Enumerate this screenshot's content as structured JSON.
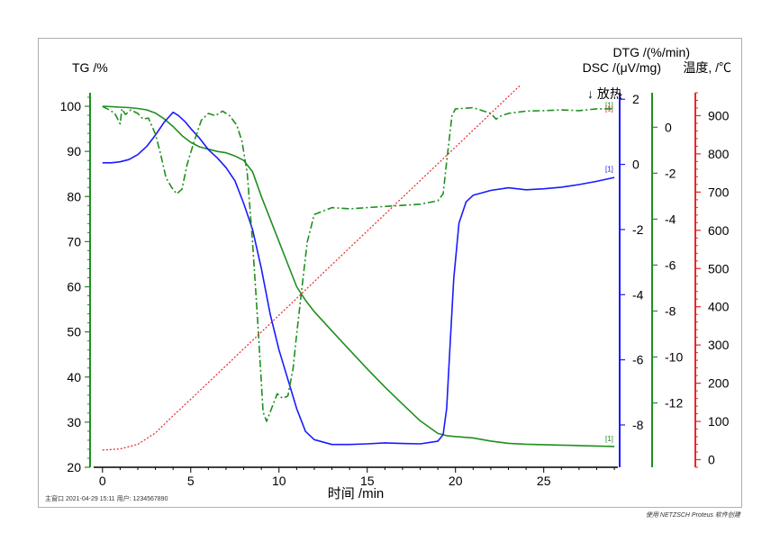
{
  "chart_data": {
    "type": "line",
    "title": "",
    "xlabel": "时间 /min",
    "xlim": [
      -0.5,
      29.2
    ],
    "x_ticks": [
      0,
      5,
      10,
      15,
      20,
      25
    ],
    "axes": {
      "tg": {
        "label": "TG /%",
        "lim": [
          20,
          103
        ],
        "ticks": [
          20,
          30,
          40,
          50,
          60,
          70,
          80,
          90,
          100
        ],
        "color": "#1f8f1f"
      },
      "dsc": {
        "label": "DSC /(μV/mg)",
        "lim": [
          -9.3,
          2.2
        ],
        "ticks": [
          -8,
          -6,
          -4,
          -2,
          0,
          2
        ],
        "color": "#1a1aff",
        "annotation": "↓ 放热"
      },
      "dtg": {
        "label": "DTG /(%/min)",
        "lim": [
          -14.8,
          1.5
        ],
        "ticks": [
          -12,
          -10,
          -8,
          -6,
          -4,
          -2,
          0
        ],
        "color": "#1f8f1f"
      },
      "temp": {
        "label": "温度, /℃",
        "lim": [
          -20,
          960
        ],
        "ticks": [
          0,
          100,
          200,
          300,
          400,
          500,
          600,
          700,
          800,
          900
        ],
        "color": "#e8272b"
      }
    },
    "series": [
      {
        "name": "TG",
        "axis": "tg",
        "color": "#1f8f1f",
        "style": "solid",
        "x": [
          0,
          1,
          1.5,
          2,
          2.5,
          3,
          3.5,
          4,
          4.5,
          5,
          5.5,
          6,
          6.5,
          7,
          7.5,
          8,
          8.5,
          9,
          9.5,
          10,
          10.5,
          11,
          11.5,
          12,
          13,
          14,
          15,
          16,
          17,
          18,
          19,
          19.5,
          20,
          21,
          22,
          23,
          24,
          25,
          26,
          27,
          28,
          29
        ],
        "y": [
          100,
          99.8,
          99.7,
          99.5,
          99.2,
          98.5,
          97.2,
          95.5,
          93.5,
          92,
          91,
          90.5,
          90,
          89.7,
          89,
          88,
          85.5,
          80,
          75,
          70,
          65,
          60,
          57,
          54.5,
          50.2,
          46,
          41.8,
          37.8,
          34,
          30.3,
          27.5,
          27,
          26.8,
          26.5,
          25.8,
          25.3,
          25.1,
          25,
          24.9,
          24.8,
          24.7,
          24.6
        ]
      },
      {
        "name": "DSC",
        "axis": "dsc",
        "color": "#1a1aff",
        "style": "solid",
        "x": [
          0,
          0.5,
          1,
          1.5,
          2,
          2.5,
          3,
          3.5,
          4,
          4.3,
          4.7,
          5,
          5.5,
          6,
          6.5,
          7,
          7.5,
          8,
          8.5,
          9,
          9.5,
          10,
          10.5,
          11,
          11.5,
          12,
          13,
          14,
          15,
          16,
          17,
          18,
          19,
          19.3,
          19.5,
          19.7,
          19.9,
          20.2,
          20.6,
          21,
          22,
          23,
          24,
          25,
          26,
          27,
          28,
          29
        ],
        "y": [
          0.05,
          0.05,
          0.08,
          0.15,
          0.3,
          0.55,
          0.9,
          1.3,
          1.6,
          1.5,
          1.3,
          1.1,
          0.8,
          0.45,
          0.2,
          -0.1,
          -0.5,
          -1.2,
          -2,
          -3.2,
          -4.6,
          -5.7,
          -6.6,
          -7.5,
          -8.2,
          -8.45,
          -8.6,
          -8.6,
          -8.58,
          -8.55,
          -8.57,
          -8.58,
          -8.5,
          -8.3,
          -7.5,
          -5.5,
          -3.5,
          -1.8,
          -1.15,
          -0.95,
          -0.8,
          -0.72,
          -0.78,
          -0.75,
          -0.7,
          -0.62,
          -0.52,
          -0.4
        ]
      },
      {
        "name": "DTG",
        "axis": "dtg",
        "color": "#1f8f1f",
        "style": "dashdot",
        "x": [
          0,
          0.4,
          0.7,
          1,
          1.1,
          1.3,
          1.6,
          2,
          2.3,
          2.6,
          3,
          3.3,
          3.6,
          3.9,
          4.2,
          4.5,
          4.8,
          5.2,
          5.6,
          6,
          6.4,
          6.8,
          7.2,
          7.6,
          7.9,
          8.2,
          8.5,
          8.8,
          9.1,
          9.3,
          9.6,
          9.9,
          10.2,
          10.5,
          10.8,
          11,
          11.3,
          11.6,
          12,
          13,
          14,
          15,
          16,
          17,
          18,
          19,
          19.3,
          19.5,
          19.8,
          20,
          21,
          22,
          22.3,
          22.6,
          23,
          24,
          25,
          26,
          27,
          28,
          29
        ],
        "y": [
          0.9,
          0.75,
          0.6,
          0.15,
          0.8,
          0.55,
          0.75,
          0.6,
          0.35,
          0.4,
          -0.3,
          -1.2,
          -2.2,
          -2.6,
          -2.9,
          -2.7,
          -1.6,
          -0.6,
          0.3,
          0.6,
          0.5,
          0.7,
          0.5,
          0.1,
          -0.6,
          -2,
          -5,
          -8.5,
          -12.4,
          -12.8,
          -12.2,
          -11.6,
          -11.8,
          -11.7,
          -10.5,
          -9,
          -7,
          -5,
          -3.8,
          -3.5,
          -3.55,
          -3.5,
          -3.45,
          -3.4,
          -3.35,
          -3.2,
          -2.9,
          -1.5,
          0.5,
          0.8,
          0.85,
          0.6,
          0.35,
          0.5,
          0.6,
          0.7,
          0.72,
          0.75,
          0.72,
          0.8,
          0.8
        ]
      },
      {
        "name": "温度",
        "axis": "temp",
        "color": "#e8272b",
        "style": "dotted",
        "x": [
          0,
          1,
          2,
          3,
          4,
          5,
          6,
          8,
          10,
          12,
          14,
          16,
          18,
          20,
          22,
          24,
          26,
          28,
          29
        ],
        "y": [
          25,
          28,
          40,
          70,
          115,
          158,
          202,
          290,
          378,
          466,
          554,
          642,
          730,
          818,
          906,
          994,
          1082,
          1170,
          1214
        ]
      }
    ],
    "curve_labels": [
      "[1]",
      "[1]",
      "[1]",
      "[1]",
      "[1]"
    ],
    "grid": false,
    "legend": "none"
  },
  "footer": {
    "left": "主窗口    2021-04-29 15:11    用户: 1234567890",
    "right": "使用 NETZSCH Proteus 软件创建"
  }
}
